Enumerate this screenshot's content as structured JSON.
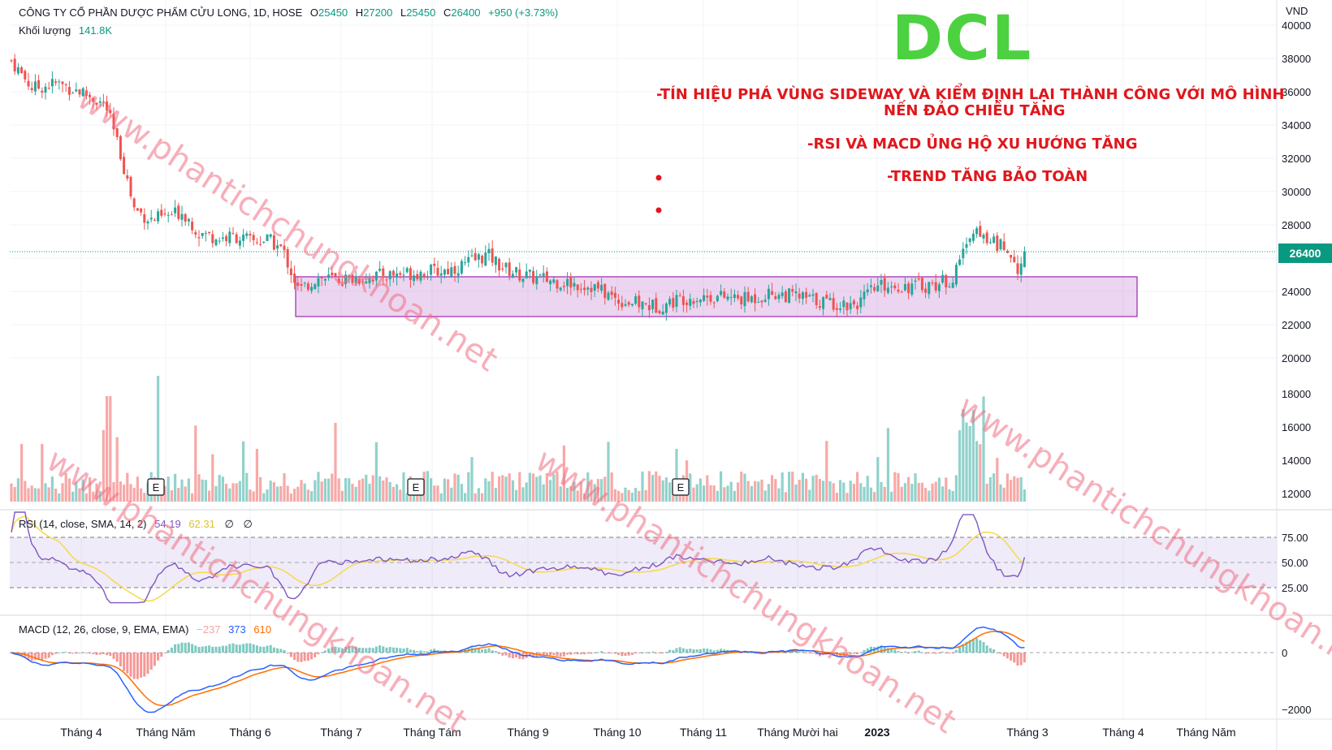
{
  "header": {
    "symbol_line": "CÔNG TY CỔ PHẦN DƯỢC PHẨM CỬU LONG, 1D, HOSE",
    "open_label": "O",
    "open": "25450",
    "high_label": "H",
    "high": "27200",
    "low_label": "L",
    "low": "25450",
    "close_label": "C",
    "close": "26400",
    "change": "+950 (+3.73%)",
    "volume_label": "Khối lượng",
    "volume": "141.8K",
    "currency": "VND"
  },
  "ticker": "DCL",
  "notes": [
    "-TÍN HIỆU PHÁ VÙNG SIDEWAY VÀ KIỂM ĐỊNH LẠI THÀNH CÔNG VỚI MÔ HÌNH",
    "NẾN ĐẢO CHIỀU TĂNG",
    "-RSI VÀ MACD ỦNG HỘ XU HƯỚNG TĂNG",
    "-TREND TĂNG BẢO TOÀN"
  ],
  "watermark": "www.phantichchungkhoan.net",
  "rsi_legend": {
    "label": "RSI (14, close, SMA, 14, 2)",
    "rsi": "54.19",
    "sma": "62.31",
    "extra1": "∅",
    "extra2": "∅"
  },
  "macd_legend": {
    "label": "MACD (12, 26, close, 9, EMA, EMA)",
    "hist": "−237",
    "macd": "373",
    "signal": "610"
  },
  "earnings_marker": "E",
  "current_price_badge": "26400",
  "colors": {
    "up": "#26a69a",
    "down": "#ef5350",
    "rsi": "#7e57c2",
    "rsi_sma": "#f7d94c",
    "macd": "#2962ff",
    "signal": "#ff6d00",
    "zone": "#9c27b0",
    "ticker": "#4cd141",
    "notes": "#e0171c"
  },
  "chart_data": [
    {
      "type": "candlestick",
      "title": "CÔNG TY CỔ PHẦN DƯỢC PHẨM CỬU LONG, 1D, HOSE",
      "y_unit": "VND",
      "ylim": [
        20000,
        40000
      ],
      "y_ticks": [
        40000,
        38000,
        36000,
        34000,
        32000,
        30000,
        28000,
        26000,
        24000,
        22000,
        20000
      ],
      "x_ticks": [
        "Tháng 4",
        "Tháng Năm",
        "Tháng 6",
        "Tháng 7",
        "Tháng Tám",
        "Tháng 9",
        "Tháng 10",
        "Tháng 11",
        "Tháng Mười hai",
        "2023",
        "Tháng 3",
        "Tháng 4",
        "Tháng Năm"
      ],
      "price_path_approx": [
        {
          "x": "Tháng 4",
          "close": 36000
        },
        {
          "x": "Tháng Năm",
          "close": 28500
        },
        {
          "x": "Tháng 6",
          "close": 27000
        },
        {
          "x": "Tháng 7",
          "close": 24800
        },
        {
          "x": "Tháng Tám",
          "close": 25200
        },
        {
          "x": "Tháng 9",
          "close": 24500
        },
        {
          "x": "Tháng 10",
          "close": 23300
        },
        {
          "x": "Tháng 11",
          "close": 23700
        },
        {
          "x": "Tháng Mười hai",
          "close": 23500
        },
        {
          "x": "2023",
          "close": 23800
        },
        {
          "x": "Tháng 3",
          "close": 26400
        }
      ],
      "last": {
        "open": 25450,
        "high": 27200,
        "low": 25450,
        "close": 26400
      },
      "sideway_zone": {
        "from": "Tháng 7",
        "to": "Tháng 3",
        "low": 22600,
        "high": 24900
      }
    },
    {
      "type": "bar",
      "name": "Khối lượng",
      "y_ticks": [
        18000,
        16000,
        14000,
        12000
      ],
      "last": "141.8K"
    },
    {
      "type": "line",
      "name": "RSI (14, close, SMA, 14, 2)",
      "ylim": [
        15,
        90
      ],
      "y_ticks": [
        75.0,
        50.0,
        25.0
      ],
      "bands": [
        70,
        50,
        30
      ],
      "last_rsi": 54.19,
      "last_sma": 62.31
    },
    {
      "type": "line",
      "name": "MACD (12, 26, close, 9, EMA, EMA)",
      "y_ticks": [
        0,
        -2000
      ],
      "last_hist": -237,
      "last_macd": 373,
      "last_signal": 610
    }
  ],
  "axis_labels": {
    "price": [
      "40000",
      "38000",
      "36000",
      "34000",
      "32000",
      "30000",
      "28000",
      "26000",
      "24000",
      "22000",
      "20000",
      "18000",
      "16000",
      "14000",
      "12000"
    ],
    "rsi": [
      "75.00",
      "50.00",
      "25.00"
    ],
    "macd": [
      "0",
      "−2000"
    ],
    "time": [
      "Tháng 4",
      "Tháng Năm",
      "Tháng 6",
      "Tháng 7",
      "Tháng Tám",
      "Tháng 9",
      "Tháng 10",
      "Tháng 11",
      "Tháng Mười hai",
      "2023",
      "Tháng 3",
      "Tháng 4",
      "Tháng Năm"
    ]
  }
}
